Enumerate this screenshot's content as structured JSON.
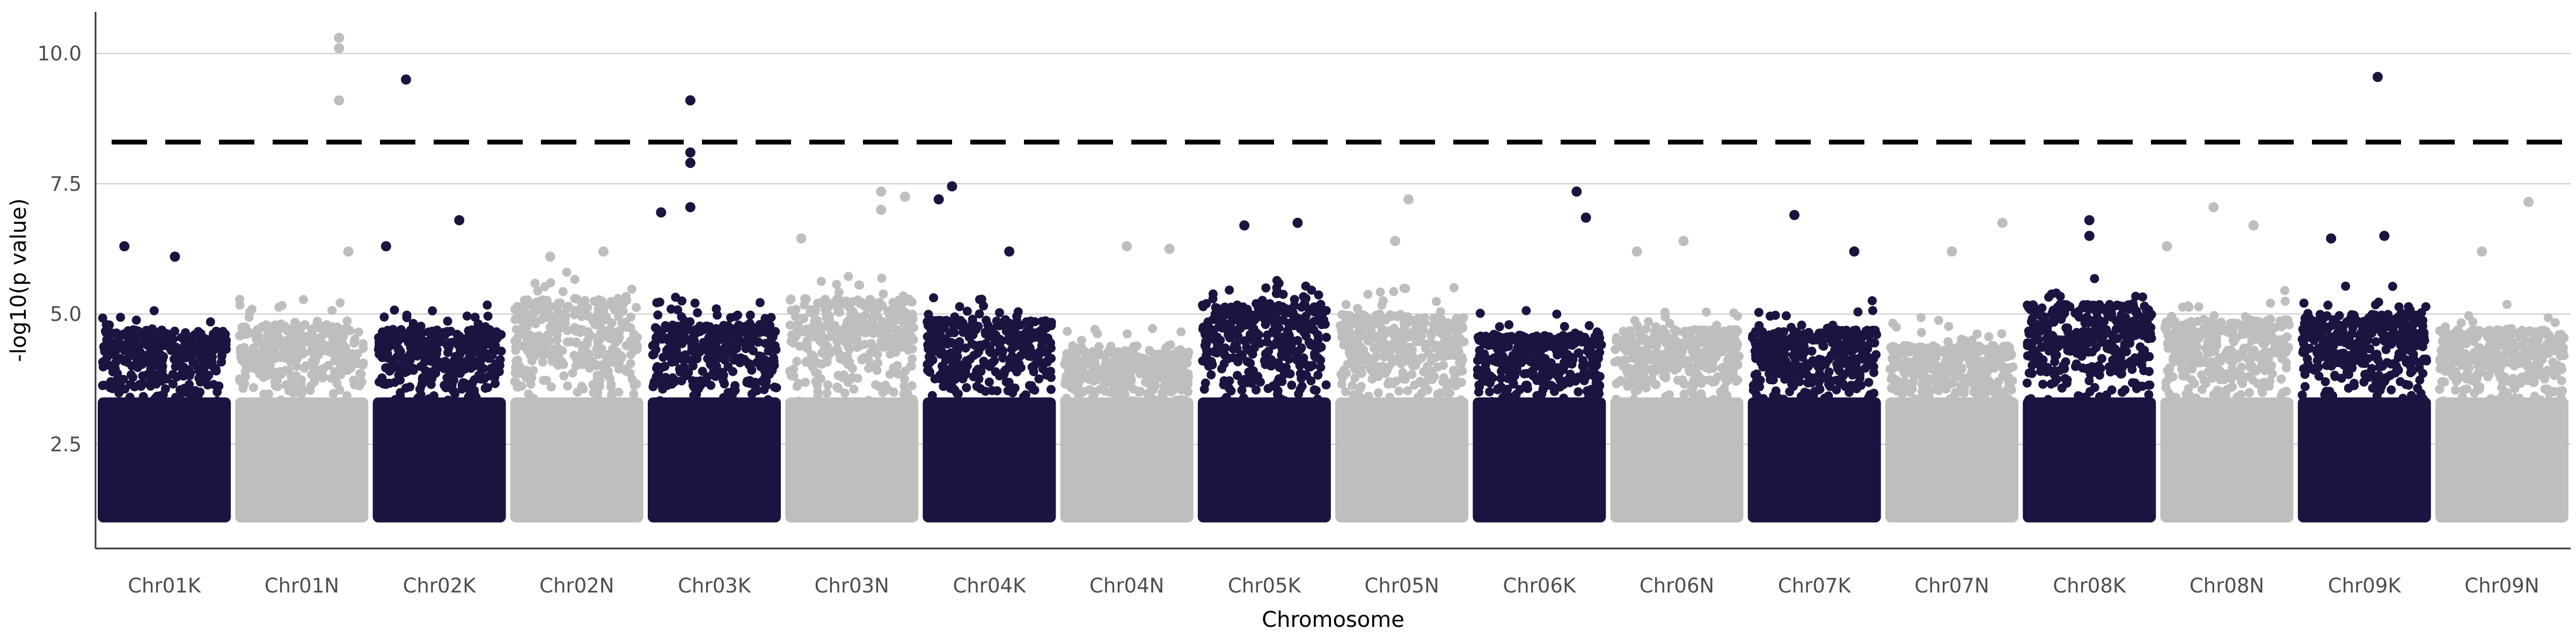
{
  "chart_data": {
    "type": "scatter",
    "subtype": "manhattan",
    "title": "",
    "xlabel": "Chromosome",
    "ylabel": "-log10(p value)",
    "ylim": [
      0.5,
      10.8
    ],
    "yticks": [
      2.5,
      5.0,
      7.5,
      10.0
    ],
    "ytick_labels": [
      "2.5",
      "5.0",
      "7.5",
      "10.0"
    ],
    "grid": "horizontal major lines only",
    "threshold": {
      "value": 8.3,
      "style": "dashed",
      "color": "#000000"
    },
    "colors": {
      "dark": "#1c1340",
      "light": "#bebebe",
      "grid": "#c8c8c8",
      "axis": "#333333"
    },
    "categories": [
      "Chr01K",
      "Chr01N",
      "Chr02K",
      "Chr02N",
      "Chr03K",
      "Chr03N",
      "Chr04K",
      "Chr04N",
      "Chr05K",
      "Chr05N",
      "Chr06K",
      "Chr06N",
      "Chr07K",
      "Chr07N",
      "Chr08K",
      "Chr08N",
      "Chr09K",
      "Chr09N"
    ],
    "series": [
      {
        "color": "#1c1340",
        "chromosomes": [
          "Chr01K",
          "Chr02K",
          "Chr03K",
          "Chr04K",
          "Chr05K",
          "Chr06K",
          "Chr07K",
          "Chr08K",
          "Chr09K"
        ],
        "mass_top": [
          4.7,
          4.7,
          4.8,
          4.9,
          5.2,
          4.6,
          4.7,
          5.2,
          5.0
        ],
        "notable_points": [
          {
            "chr": "Chr01K",
            "pos": 0.58,
            "y": 6.1
          },
          {
            "chr": "Chr01K",
            "pos": 0.2,
            "y": 6.3
          },
          {
            "chr": "Chr02K",
            "pos": 0.25,
            "y": 9.5
          },
          {
            "chr": "Chr02K",
            "pos": 0.65,
            "y": 6.8
          },
          {
            "chr": "Chr02K",
            "pos": 0.1,
            "y": 6.3
          },
          {
            "chr": "Chr03K",
            "pos": 0.32,
            "y": 9.1
          },
          {
            "chr": "Chr03K",
            "pos": 0.32,
            "y": 8.1
          },
          {
            "chr": "Chr03K",
            "pos": 0.32,
            "y": 7.9
          },
          {
            "chr": "Chr03K",
            "pos": 0.1,
            "y": 6.95
          },
          {
            "chr": "Chr03K",
            "pos": 0.32,
            "y": 7.05
          },
          {
            "chr": "Chr04K",
            "pos": 0.12,
            "y": 7.2
          },
          {
            "chr": "Chr04K",
            "pos": 0.22,
            "y": 7.45
          },
          {
            "chr": "Chr04K",
            "pos": 0.65,
            "y": 6.2
          },
          {
            "chr": "Chr05K",
            "pos": 0.35,
            "y": 6.7
          },
          {
            "chr": "Chr05K",
            "pos": 0.75,
            "y": 6.75
          },
          {
            "chr": "Chr06K",
            "pos": 0.78,
            "y": 7.35
          },
          {
            "chr": "Chr06K",
            "pos": 0.85,
            "y": 6.85
          },
          {
            "chr": "Chr07K",
            "pos": 0.35,
            "y": 6.9
          },
          {
            "chr": "Chr07K",
            "pos": 0.8,
            "y": 6.2
          },
          {
            "chr": "Chr08K",
            "pos": 0.5,
            "y": 6.8
          },
          {
            "chr": "Chr08K",
            "pos": 0.5,
            "y": 6.5
          },
          {
            "chr": "Chr09K",
            "pos": 0.6,
            "y": 9.55
          },
          {
            "chr": "Chr09K",
            "pos": 0.65,
            "y": 6.5
          },
          {
            "chr": "Chr09K",
            "pos": 0.25,
            "y": 6.45
          }
        ]
      },
      {
        "color": "#bebebe",
        "chromosomes": [
          "Chr01N",
          "Chr02N",
          "Chr03N",
          "Chr04N",
          "Chr05N",
          "Chr06N",
          "Chr07N",
          "Chr08N",
          "Chr09N"
        ],
        "mass_top": [
          4.8,
          5.3,
          5.3,
          4.3,
          5.0,
          4.7,
          4.4,
          4.9,
          4.7
        ],
        "notable_points": [
          {
            "chr": "Chr01N",
            "pos": 0.78,
            "y": 10.3
          },
          {
            "chr": "Chr01N",
            "pos": 0.78,
            "y": 10.1
          },
          {
            "chr": "Chr01N",
            "pos": 0.78,
            "y": 9.1
          },
          {
            "chr": "Chr01N",
            "pos": 0.85,
            "y": 6.2
          },
          {
            "chr": "Chr02N",
            "pos": 0.3,
            "y": 6.1
          },
          {
            "chr": "Chr02N",
            "pos": 0.7,
            "y": 6.2
          },
          {
            "chr": "Chr03N",
            "pos": 0.72,
            "y": 7.35
          },
          {
            "chr": "Chr03N",
            "pos": 0.72,
            "y": 7.0
          },
          {
            "chr": "Chr03N",
            "pos": 0.9,
            "y": 7.25
          },
          {
            "chr": "Chr03N",
            "pos": 0.12,
            "y": 6.45
          },
          {
            "chr": "Chr04N",
            "pos": 0.5,
            "y": 6.3
          },
          {
            "chr": "Chr04N",
            "pos": 0.82,
            "y": 6.25
          },
          {
            "chr": "Chr05N",
            "pos": 0.55,
            "y": 7.2
          },
          {
            "chr": "Chr05N",
            "pos": 0.45,
            "y": 6.4
          },
          {
            "chr": "Chr06N",
            "pos": 0.55,
            "y": 6.4
          },
          {
            "chr": "Chr06N",
            "pos": 0.2,
            "y": 6.2
          },
          {
            "chr": "Chr07N",
            "pos": 0.88,
            "y": 6.75
          },
          {
            "chr": "Chr07N",
            "pos": 0.5,
            "y": 6.2
          },
          {
            "chr": "Chr08N",
            "pos": 0.4,
            "y": 7.05
          },
          {
            "chr": "Chr08N",
            "pos": 0.7,
            "y": 6.7
          },
          {
            "chr": "Chr08N",
            "pos": 0.05,
            "y": 6.3
          },
          {
            "chr": "Chr09N",
            "pos": 0.7,
            "y": 7.15
          },
          {
            "chr": "Chr09N",
            "pos": 0.35,
            "y": 6.2
          }
        ]
      }
    ]
  }
}
